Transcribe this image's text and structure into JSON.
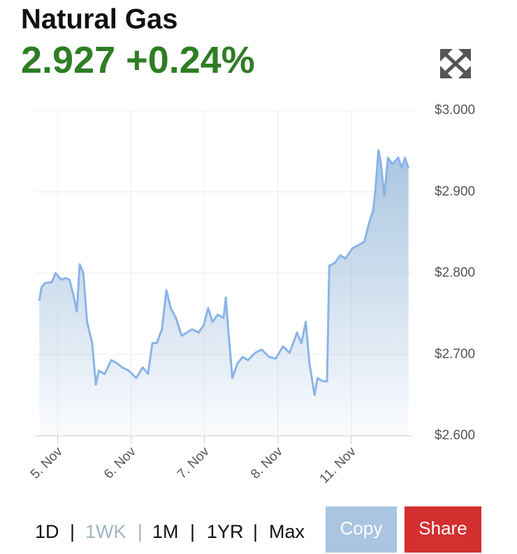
{
  "header": {
    "title": "Natural Gas",
    "price": "2.927",
    "change": "+0.24%"
  },
  "chart_data": {
    "type": "line",
    "color": "#8ab4e8",
    "x": [
      -0.25,
      -0.22,
      -0.17,
      -0.08,
      -0.03,
      0.05,
      0.11,
      0.16,
      0.21,
      0.26,
      0.3,
      0.35,
      0.4,
      0.47,
      0.52,
      0.56,
      0.64,
      0.73,
      0.81,
      0.88,
      0.97,
      1.07,
      1.16,
      1.23,
      1.29,
      1.35,
      1.42,
      1.48,
      1.54,
      1.61,
      1.69,
      1.76,
      1.83,
      1.92,
      1.99,
      2.05,
      2.11,
      2.18,
      2.26,
      2.29,
      2.33,
      2.38,
      2.45,
      2.52,
      2.59,
      2.69,
      2.78,
      2.88,
      2.97,
      3.07,
      3.16,
      3.26,
      3.32,
      3.38,
      3.43,
      3.5,
      3.54,
      3.61,
      3.67,
      3.7,
      3.78,
      3.85,
      3.92,
      4.02,
      4.11,
      4.18,
      4.24,
      4.3,
      4.33,
      4.37,
      4.4,
      4.45,
      4.5,
      4.56,
      4.64,
      4.69,
      4.73,
      4.78
    ],
    "values": [
      2.766,
      2.783,
      2.788,
      2.789,
      2.8,
      2.792,
      2.794,
      2.792,
      2.775,
      2.753,
      2.811,
      2.8,
      2.74,
      2.714,
      2.663,
      2.68,
      2.676,
      2.693,
      2.689,
      2.684,
      2.68,
      2.671,
      2.684,
      2.676,
      2.714,
      2.714,
      2.731,
      2.779,
      2.757,
      2.745,
      2.723,
      2.727,
      2.731,
      2.727,
      2.736,
      2.757,
      2.74,
      2.749,
      2.745,
      2.77,
      2.723,
      2.671,
      2.689,
      2.697,
      2.693,
      2.702,
      2.706,
      2.697,
      2.695,
      2.71,
      2.702,
      2.727,
      2.714,
      2.74,
      2.689,
      2.65,
      2.671,
      2.667,
      2.667,
      2.809,
      2.813,
      2.822,
      2.818,
      2.831,
      2.835,
      2.839,
      2.861,
      2.878,
      2.904,
      2.951,
      2.938,
      2.895,
      2.942,
      2.934,
      2.942,
      2.929,
      2.942,
      2.929
    ],
    "xlim": [
      -0.31,
      4.83
    ],
    "xticks": [
      {
        "value": 0,
        "label": "5. Nov"
      },
      {
        "value": 1,
        "label": "6. Nov"
      },
      {
        "value": 2,
        "label": "7. Nov"
      },
      {
        "value": 3,
        "label": "8. Nov"
      },
      {
        "value": 4,
        "label": "11. Nov"
      }
    ],
    "ylim": [
      2.6,
      3.0
    ],
    "yticks": [
      {
        "value": 2.6,
        "label": "$2.600"
      },
      {
        "value": 2.7,
        "label": "$2.700"
      },
      {
        "value": 2.8,
        "label": "$2.800"
      },
      {
        "value": 2.9,
        "label": "$2.900"
      },
      {
        "value": 3.0,
        "label": "$3.000"
      }
    ],
    "grid": true
  },
  "controls": {
    "ranges": [
      "1D",
      "1WK",
      "1M",
      "1YR",
      "Max"
    ],
    "separator": "|",
    "active": 1,
    "copy": "Copy",
    "share": "Share"
  }
}
